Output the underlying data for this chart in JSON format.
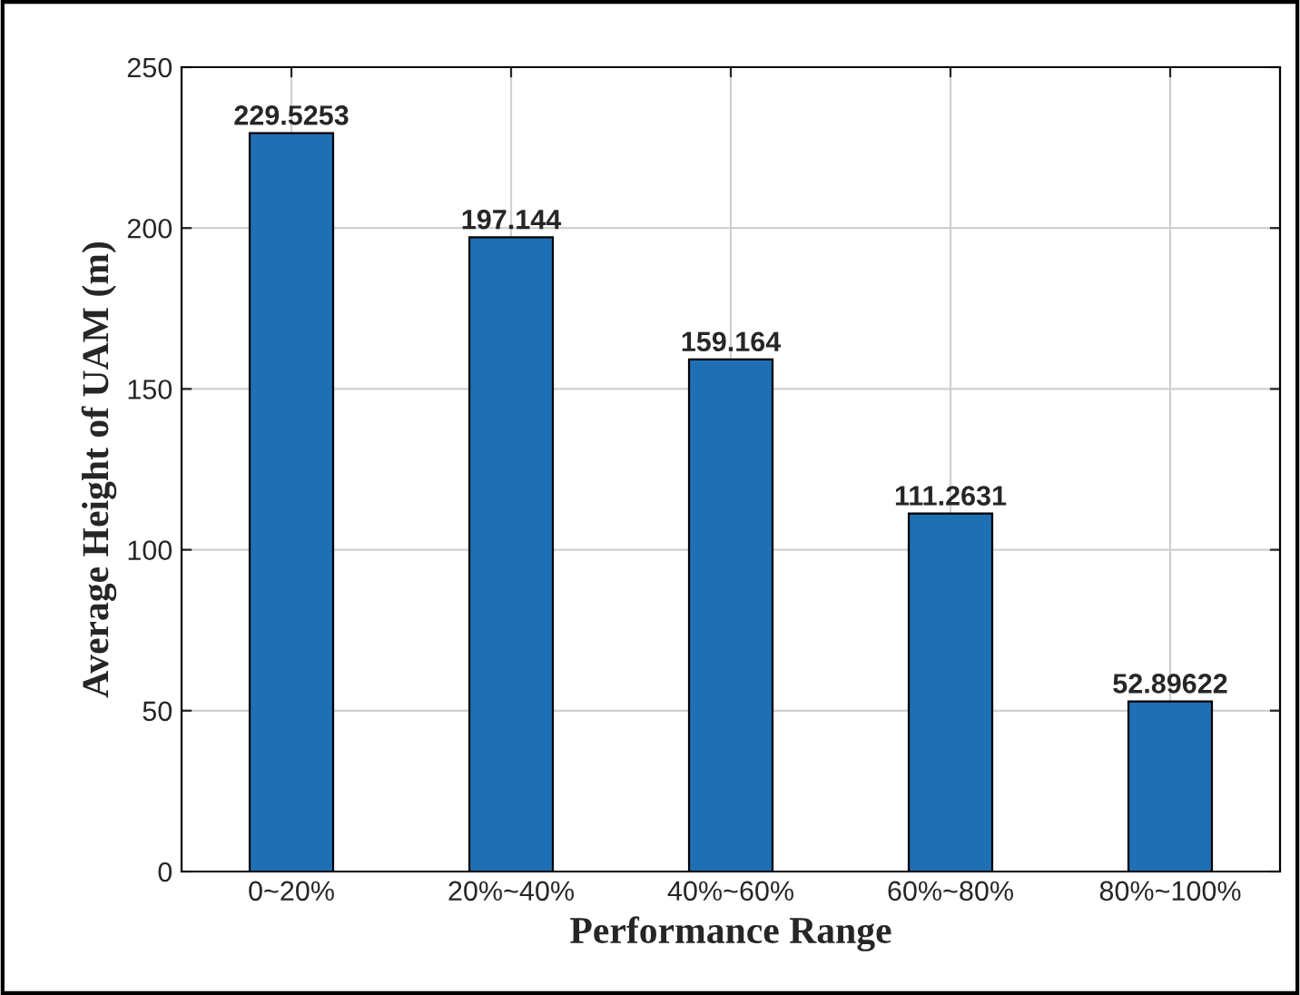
{
  "chart_data": {
    "type": "bar",
    "xlabel": "Performance Range",
    "ylabel": "Average Height of UAM (m)",
    "categories": [
      "0~20%",
      "20%~40%",
      "40%~60%",
      "60%~80%",
      "80%~100%"
    ],
    "values": [
      229.5253,
      197.144,
      159.164,
      111.2631,
      52.89622
    ],
    "color": "#1f6fb4",
    "ylim": [
      0,
      250
    ],
    "yticks": [
      0,
      50,
      100,
      150,
      200,
      250
    ],
    "grid": true,
    "data_labels": true
  }
}
